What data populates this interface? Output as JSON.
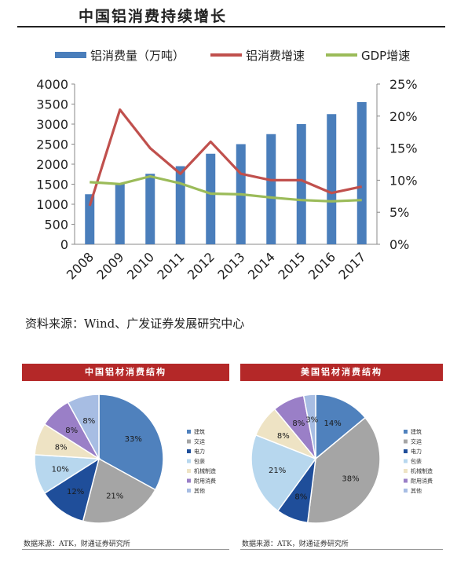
{
  "header": {
    "title": "中国铝消费持续增长"
  },
  "source_main": "资料来源：Wind、广发证券发展研究中心",
  "chart_data": [
    {
      "type": "bar+line",
      "categories": [
        "2008",
        "2009",
        "2010",
        "2011",
        "2012",
        "2013",
        "2014",
        "2015",
        "2016",
        "2017"
      ],
      "series": [
        {
          "name": "铝消费量（万吨）",
          "kind": "bar",
          "axis": "left",
          "color": "#4a7ebb",
          "values": [
            1250,
            1500,
            1760,
            1950,
            2260,
            2500,
            2750,
            3000,
            3250,
            3550
          ]
        },
        {
          "name": "铝消费增速",
          "kind": "line",
          "axis": "right",
          "color": "#c0504d",
          "values": [
            6,
            21,
            15,
            11,
            16,
            11,
            10,
            10,
            8,
            9
          ]
        },
        {
          "name": "GDP增速",
          "kind": "line",
          "axis": "right",
          "color": "#9bbb59",
          "values": [
            9.7,
            9.4,
            10.6,
            9.5,
            7.9,
            7.8,
            7.3,
            6.9,
            6.7,
            6.9
          ]
        }
      ],
      "left_axis": {
        "ylim": [
          0,
          4000
        ],
        "ticks": [
          "0",
          "500",
          "1000",
          "1500",
          "2000",
          "2500",
          "3000",
          "3500",
          "4000"
        ]
      },
      "right_axis": {
        "ylim": [
          0,
          25
        ],
        "ticks": [
          "0%",
          "5%",
          "10%",
          "15%",
          "20%",
          "25%"
        ]
      },
      "legend": "top"
    },
    {
      "type": "pie",
      "title": "中国铝材消费结构",
      "slices": [
        {
          "label": "建筑",
          "value": 33,
          "text": "33%",
          "color": "#4f81bd"
        },
        {
          "label": "交运",
          "value": 21,
          "text": "21%",
          "color": "#a5a5a5"
        },
        {
          "label": "电力",
          "value": 12,
          "text": "12%",
          "color": "#1f4e9a"
        },
        {
          "label": "包装",
          "value": 10,
          "text": "10%",
          "color": "#b7d7ee"
        },
        {
          "label": "机械制造",
          "value": 8,
          "text": "8%",
          "color": "#eee3c4"
        },
        {
          "label": "耐用消费",
          "value": 8,
          "text": "8%",
          "color": "#9a7fc7"
        },
        {
          "label": "其他",
          "value": 8,
          "text": "8%",
          "color": "#a7bde3"
        }
      ],
      "legend": "right",
      "source": "数据来源：ATK，财通证券研究所"
    },
    {
      "type": "pie",
      "title": "美国铝材消费结构",
      "slices": [
        {
          "label": "建筑",
          "value": 14,
          "text": "14%",
          "color": "#4f81bd"
        },
        {
          "label": "交运",
          "value": 38,
          "text": "38%",
          "color": "#a5a5a5"
        },
        {
          "label": "电力",
          "value": 8,
          "text": "8%",
          "color": "#1f4e9a"
        },
        {
          "label": "包装",
          "value": 21,
          "text": "21%",
          "color": "#b7d7ee"
        },
        {
          "label": "机械制造",
          "value": 8,
          "text": "8%",
          "color": "#eee3c4"
        },
        {
          "label": "耐用消费",
          "value": 8,
          "text": "8%",
          "color": "#9a7fc7"
        },
        {
          "label": "其他",
          "value": 3,
          "text": "3%",
          "color": "#a7bde3"
        }
      ],
      "legend": "right",
      "source": "数据来源：ATK，财通证券研究所"
    }
  ]
}
